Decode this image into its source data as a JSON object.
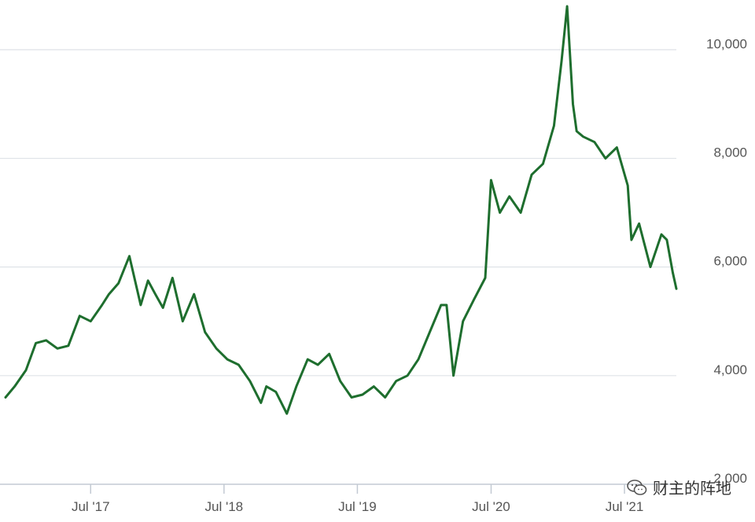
{
  "chart_data": {
    "type": "line",
    "title": "",
    "xlabel": "",
    "ylabel": "",
    "x_tick_labels": [
      "Jul '17",
      "Jul '18",
      "Jul '19",
      "Jul '20",
      "Jul '21"
    ],
    "x_tick_dates": [
      "2017-07-01",
      "2018-07-01",
      "2019-07-01",
      "2020-07-01",
      "2021-07-01"
    ],
    "xlim": [
      "2016-11-10",
      "2021-11-20"
    ],
    "y_ticks": [
      2000,
      4000,
      6000,
      8000,
      10000
    ],
    "y_tick_labels": [
      "2,000",
      "4,000",
      "6,000",
      "8,000",
      "10,000"
    ],
    "ylim": [
      2000,
      10800
    ],
    "grid": "horizontal",
    "y_axis_position": "right",
    "series": [
      {
        "color": "#1e6e2e",
        "x": [
          "2016-11-10",
          "2016-12-05",
          "2017-01-05",
          "2017-02-01",
          "2017-03-01",
          "2017-04-01",
          "2017-05-01",
          "2017-06-01",
          "2017-07-01",
          "2017-08-01",
          "2017-08-20",
          "2017-09-15",
          "2017-10-15",
          "2017-11-15",
          "2017-12-05",
          "2017-12-25",
          "2018-01-15",
          "2018-02-10",
          "2018-03-10",
          "2018-04-10",
          "2018-05-10",
          "2018-06-10",
          "2018-07-10",
          "2018-08-10",
          "2018-09-10",
          "2018-10-10",
          "2018-10-25",
          "2018-11-20",
          "2018-12-20",
          "2019-01-15",
          "2019-02-15",
          "2019-03-15",
          "2019-04-15",
          "2019-05-15",
          "2019-06-15",
          "2019-07-15",
          "2019-08-15",
          "2019-09-15",
          "2019-10-15",
          "2019-11-15",
          "2019-12-15",
          "2020-01-15",
          "2020-02-15",
          "2020-03-01",
          "2020-03-20",
          "2020-04-15",
          "2020-05-15",
          "2020-06-15",
          "2020-07-01",
          "2020-07-25",
          "2020-08-20",
          "2020-09-20",
          "2020-10-20",
          "2020-11-20",
          "2020-12-20",
          "2021-01-10",
          "2021-01-25",
          "2021-02-10",
          "2021-02-20",
          "2021-03-10",
          "2021-04-10",
          "2021-05-10",
          "2021-06-10",
          "2021-07-10",
          "2021-07-20",
          "2021-08-10",
          "2021-09-10",
          "2021-10-10",
          "2021-10-25",
          "2021-11-10",
          "2021-11-20"
        ],
        "y": [
          3600,
          3800,
          4100,
          4600,
          4650,
          4500,
          4550,
          5100,
          5000,
          5300,
          5500,
          5700,
          6200,
          5300,
          5750,
          5500,
          5250,
          5800,
          5000,
          5500,
          4800,
          4500,
          4300,
          4200,
          3900,
          3500,
          3800,
          3700,
          3300,
          3800,
          4300,
          4200,
          4400,
          3900,
          3600,
          3650,
          3800,
          3600,
          3900,
          4000,
          4300,
          4800,
          5300,
          5300,
          4000,
          5000,
          5400,
          5800,
          7600,
          7000,
          7300,
          7000,
          7700,
          7900,
          8600,
          9800,
          10800,
          9000,
          8500,
          8400,
          8300,
          8000,
          8200,
          7500,
          6500,
          6800,
          6000,
          6600,
          6500,
          5900,
          5600
        ]
      }
    ]
  },
  "watermark": {
    "text": "财主的阵地",
    "icon": "wechat-icon"
  }
}
